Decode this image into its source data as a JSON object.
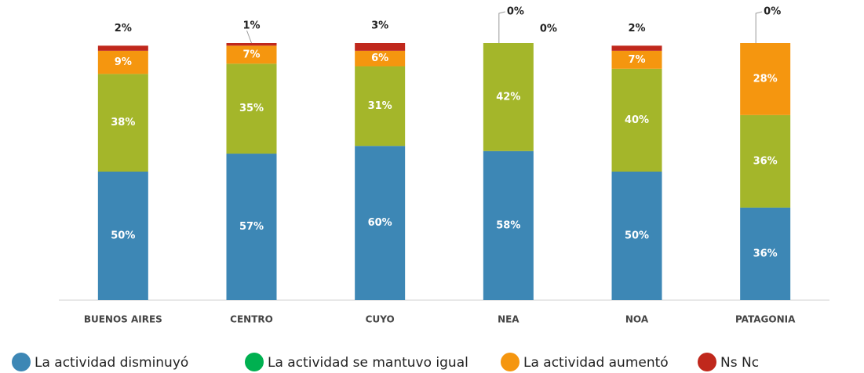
{
  "chart_data": {
    "type": "stacked_bar",
    "categories": [
      "BUENOS AIRES",
      "CENTRO",
      "CUYO",
      "NEA",
      "NOA",
      "PATAGONIA"
    ],
    "ylim": [
      0,
      100
    ],
    "series": [
      {
        "name": "La actividad disminuyó",
        "color": "#3d87b5",
        "legend_color": "#3d87b5",
        "values": [
          50,
          57,
          60,
          58,
          50,
          36
        ],
        "value_labels": [
          "50%",
          "57%",
          "60%",
          "58%",
          "50%",
          "36%"
        ]
      },
      {
        "name": "La actividad se mantuvo igual",
        "color": "#a4b62a",
        "legend_color": "#00b050",
        "values": [
          38,
          35,
          31,
          42,
          40,
          36
        ],
        "value_labels": [
          "38%",
          "35%",
          "31%",
          "42%",
          "40%",
          "36%"
        ]
      },
      {
        "name": "La actividad aumentó",
        "color": "#f5960f",
        "legend_color": "#f5960f",
        "values": [
          9,
          7,
          6,
          0,
          7,
          28
        ],
        "value_labels": [
          "9%",
          "7%",
          "6%",
          "0%",
          "7%",
          "28%"
        ]
      },
      {
        "name": "Ns Nc",
        "color": "#c0281c",
        "legend_color": "#c0281c",
        "values": [
          2,
          1,
          3,
          0,
          2,
          0
        ],
        "value_labels": [
          "2%",
          "1%",
          "3%",
          "0%",
          "2%",
          "0%"
        ]
      }
    ]
  }
}
